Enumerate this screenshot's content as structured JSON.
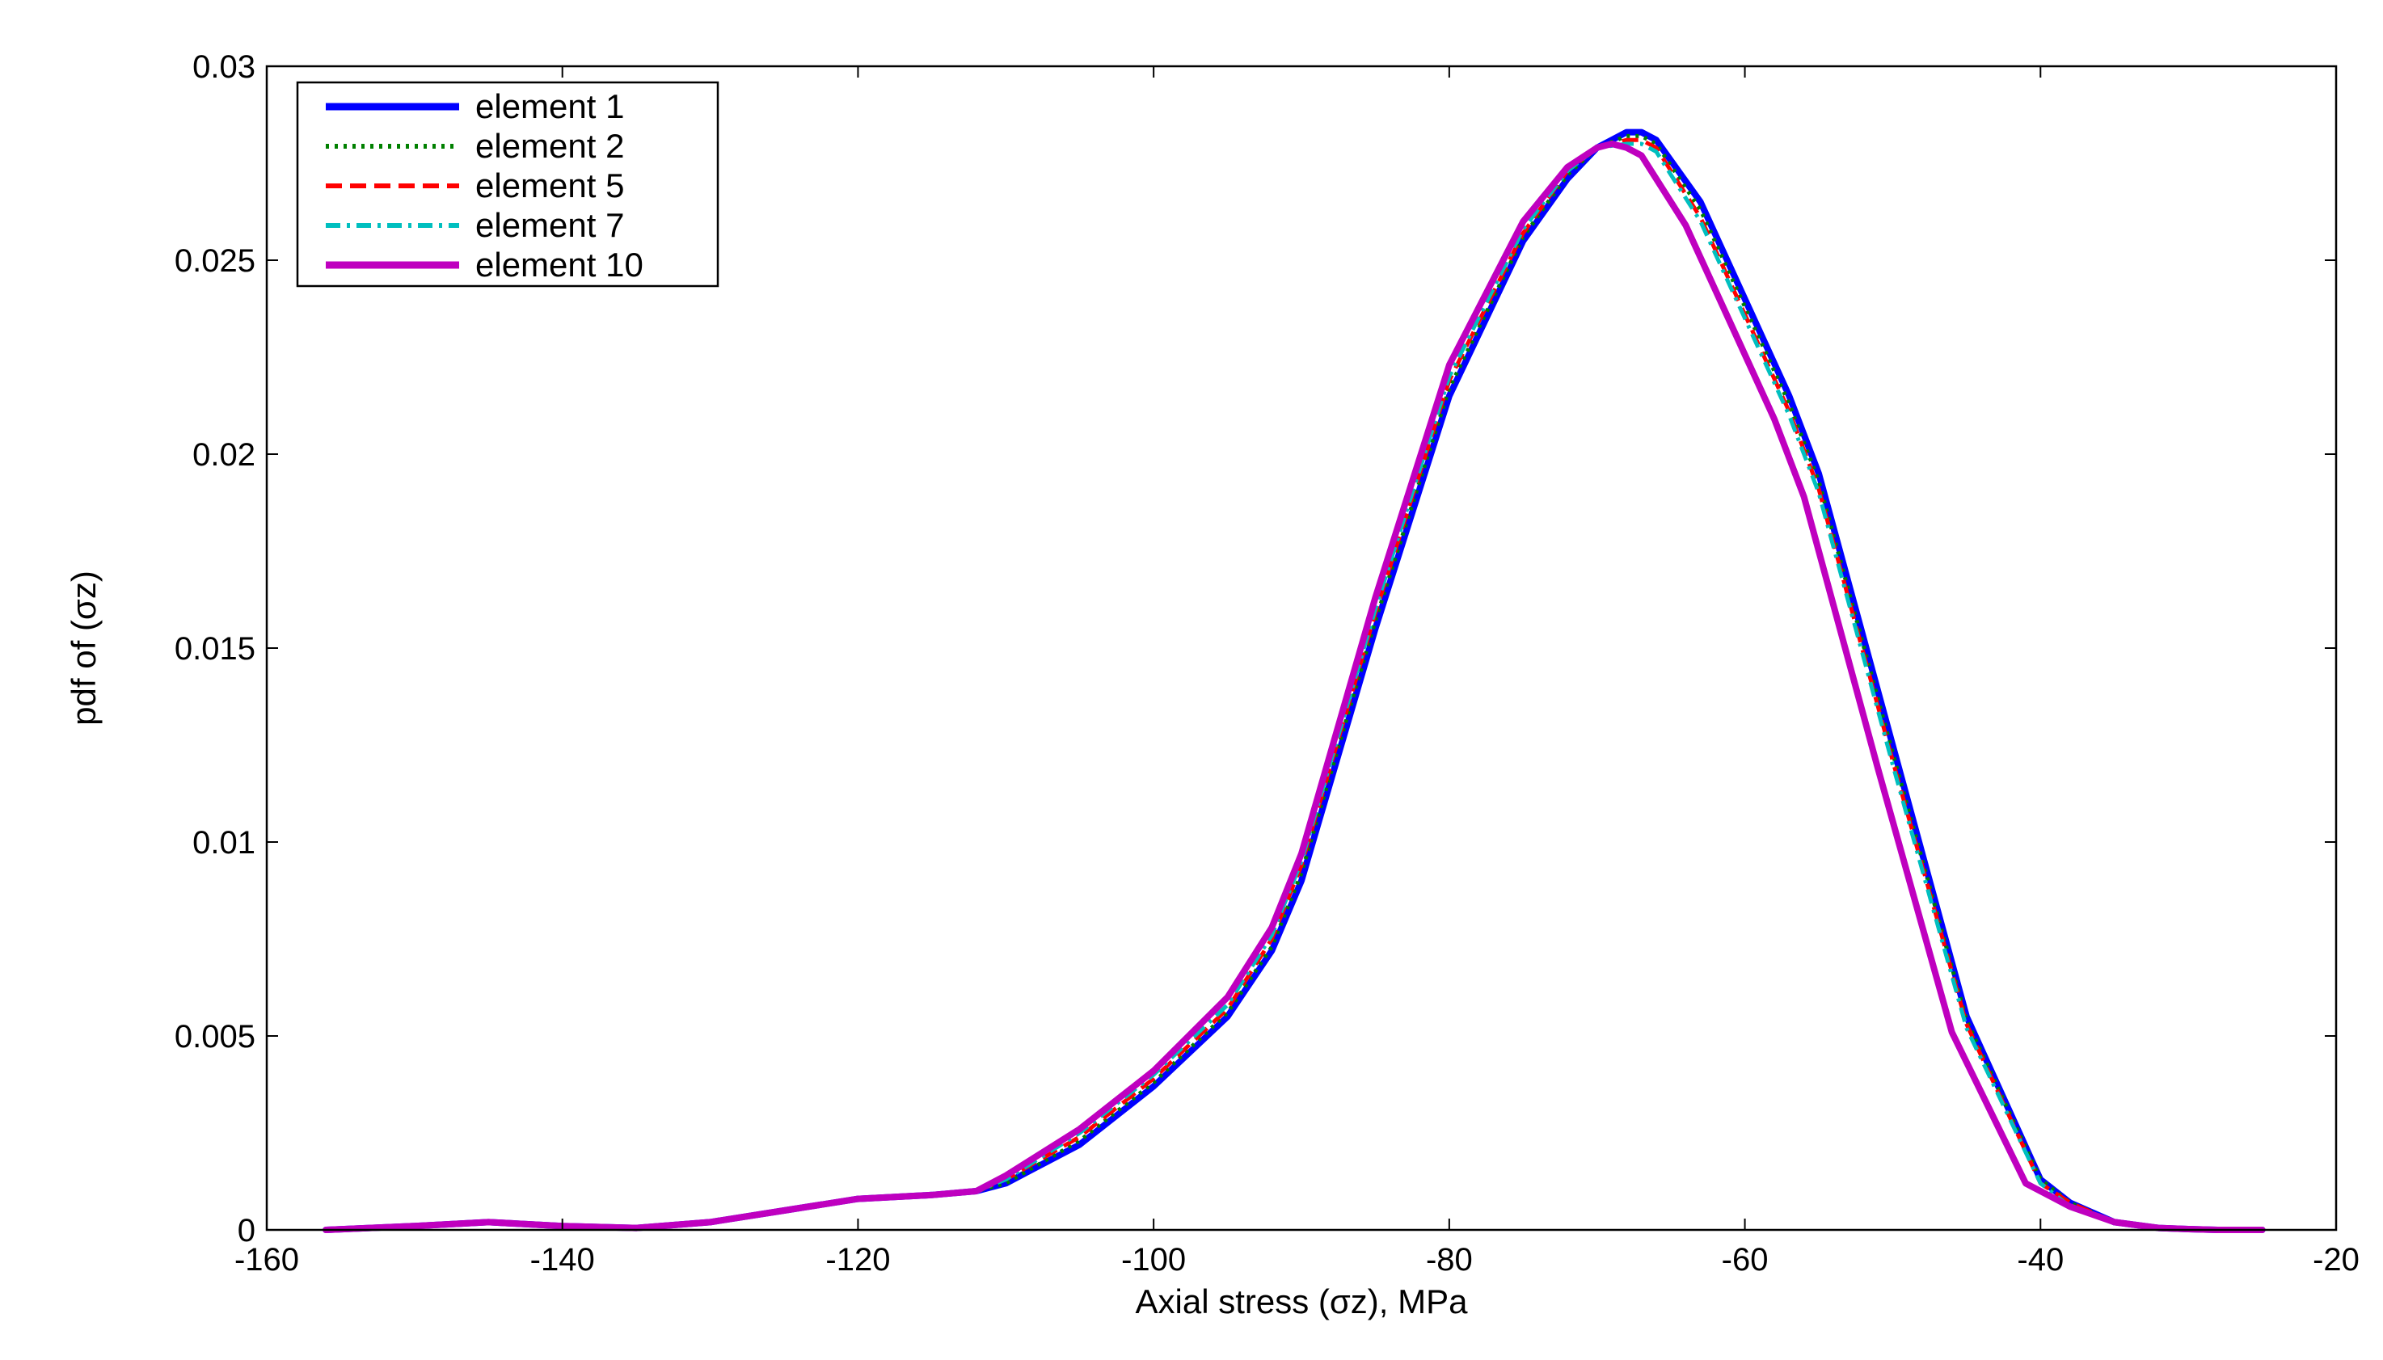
{
  "chart_data": {
    "type": "line",
    "xlabel": "Axial stress (σz), MPa",
    "ylabel": "pdf of (σz)",
    "xlim": [
      -160,
      -20
    ],
    "ylim": [
      0,
      0.03
    ],
    "xticks": [
      -160,
      -140,
      -120,
      -100,
      -80,
      -60,
      -40,
      -20
    ],
    "yticks": [
      0,
      0.005,
      0.01,
      0.015,
      0.02,
      0.025,
      0.03
    ],
    "xtick_labels": [
      "-160",
      "-140",
      "-120",
      "-100",
      "-80",
      "-60",
      "-40",
      "-20"
    ],
    "ytick_labels": [
      "0",
      "0.005",
      "0.01",
      "0.015",
      "0.02",
      "0.025",
      "0.03"
    ],
    "grid": false,
    "legend_position": "top-left",
    "series": [
      {
        "name": "element 1",
        "color": "#0000ff",
        "style": "solid",
        "x": [
          -156,
          -150,
          -145,
          -140,
          -135,
          -130,
          -125,
          -120,
          -115,
          -112,
          -110,
          -105,
          -100,
          -95,
          -92,
          -90,
          -85,
          -80,
          -75,
          -72,
          -70,
          -68,
          -67,
          -66,
          -63,
          -60,
          -57,
          -55,
          -50,
          -45,
          -40,
          -38,
          -35,
          -32,
          -30,
          -28,
          -25
        ],
        "y": [
          0,
          0.0001,
          0.0002,
          0.0001,
          5e-05,
          0.0002,
          0.0005,
          0.0008,
          0.0009,
          0.001,
          0.0012,
          0.0022,
          0.0037,
          0.0055,
          0.0072,
          0.009,
          0.0155,
          0.0215,
          0.0255,
          0.0271,
          0.0279,
          0.0283,
          0.0283,
          0.0281,
          0.0265,
          0.024,
          0.0215,
          0.0195,
          0.0125,
          0.0055,
          0.0013,
          0.0007,
          0.0002,
          5e-05,
          2e-05,
          0.0,
          0.0
        ]
      },
      {
        "name": "element 2",
        "color": "#008000",
        "style": "dotted",
        "x": [
          -156,
          -150,
          -145,
          -140,
          -135,
          -130,
          -125,
          -120,
          -115,
          -112,
          -110,
          -105,
          -100,
          -95,
          -92,
          -90,
          -85,
          -80,
          -75,
          -72,
          -70,
          -68,
          -67,
          -66,
          -63,
          -60,
          -57,
          -55,
          -50,
          -45,
          -40,
          -38,
          -35,
          -32,
          -30,
          -28,
          -25
        ],
        "y": [
          0,
          0.0001,
          0.0002,
          0.0001,
          5e-05,
          0.0002,
          0.0005,
          0.0008,
          0.0009,
          0.001,
          0.0012,
          0.0023,
          0.0038,
          0.0056,
          0.0073,
          0.0092,
          0.0157,
          0.0217,
          0.0256,
          0.0272,
          0.0279,
          0.0282,
          0.0282,
          0.028,
          0.0263,
          0.0238,
          0.0213,
          0.0193,
          0.0123,
          0.0054,
          0.0013,
          0.0007,
          0.0002,
          5e-05,
          2e-05,
          0.0,
          0.0
        ]
      },
      {
        "name": "element 5",
        "color": "#ff0000",
        "style": "dashed",
        "x": [
          -156,
          -150,
          -145,
          -140,
          -135,
          -130,
          -125,
          -120,
          -115,
          -112,
          -110,
          -105,
          -100,
          -95,
          -92,
          -90,
          -85,
          -80,
          -75,
          -72,
          -70,
          -68,
          -67,
          -66,
          -63,
          -60,
          -57,
          -55,
          -50,
          -45,
          -40,
          -38,
          -35,
          -32,
          -30,
          -28,
          -25
        ],
        "y": [
          0,
          0.0001,
          0.0002,
          0.0001,
          5e-05,
          0.0002,
          0.0005,
          0.0008,
          0.0009,
          0.001,
          0.0013,
          0.0024,
          0.0039,
          0.0057,
          0.0075,
          0.0094,
          0.0159,
          0.0219,
          0.0257,
          0.0273,
          0.0279,
          0.0281,
          0.0281,
          0.0279,
          0.0261,
          0.0236,
          0.0211,
          0.0191,
          0.0121,
          0.0053,
          0.0012,
          0.0007,
          0.0002,
          5e-05,
          2e-05,
          0.0,
          0.0
        ]
      },
      {
        "name": "element 7",
        "color": "#00bfbf",
        "style": "dashdot",
        "x": [
          -156,
          -150,
          -145,
          -140,
          -135,
          -130,
          -125,
          -120,
          -115,
          -112,
          -110,
          -105,
          -100,
          -95,
          -92,
          -90,
          -85,
          -80,
          -75,
          -72,
          -70,
          -68,
          -67,
          -66,
          -63,
          -60,
          -57,
          -55,
          -50,
          -45,
          -40,
          -38,
          -35,
          -32,
          -30,
          -28,
          -25
        ],
        "y": [
          0,
          0.0001,
          0.0002,
          0.0001,
          5e-05,
          0.0002,
          0.0005,
          0.0008,
          0.0009,
          0.001,
          0.0013,
          0.0025,
          0.004,
          0.0058,
          0.0076,
          0.0095,
          0.016,
          0.022,
          0.0258,
          0.0273,
          0.0279,
          0.028,
          0.028,
          0.0278,
          0.026,
          0.0235,
          0.021,
          0.019,
          0.012,
          0.0052,
          0.0012,
          0.0006,
          0.0002,
          5e-05,
          2e-05,
          0.0,
          0.0
        ]
      },
      {
        "name": "element 10",
        "color": "#bf00bf",
        "style": "solid",
        "x": [
          -156,
          -150,
          -145,
          -140,
          -135,
          -130,
          -125,
          -120,
          -115,
          -112,
          -110,
          -105,
          -100,
          -95,
          -92,
          -90,
          -85,
          -80,
          -75,
          -72,
          -70,
          -69,
          -68,
          -67,
          -64,
          -61,
          -58,
          -56,
          -51,
          -46,
          -41,
          -38,
          -35,
          -32,
          -30,
          -28,
          -25
        ],
        "y": [
          0,
          0.0001,
          0.0002,
          0.0001,
          5e-05,
          0.0002,
          0.0005,
          0.0008,
          0.0009,
          0.001,
          0.0014,
          0.0026,
          0.0041,
          0.006,
          0.0078,
          0.0097,
          0.0163,
          0.0223,
          0.026,
          0.0274,
          0.0279,
          0.028,
          0.0279,
          0.0277,
          0.0259,
          0.0234,
          0.0209,
          0.0189,
          0.0119,
          0.0051,
          0.0012,
          0.0006,
          0.0002,
          5e-05,
          2e-05,
          0.0,
          0.0
        ]
      }
    ]
  }
}
